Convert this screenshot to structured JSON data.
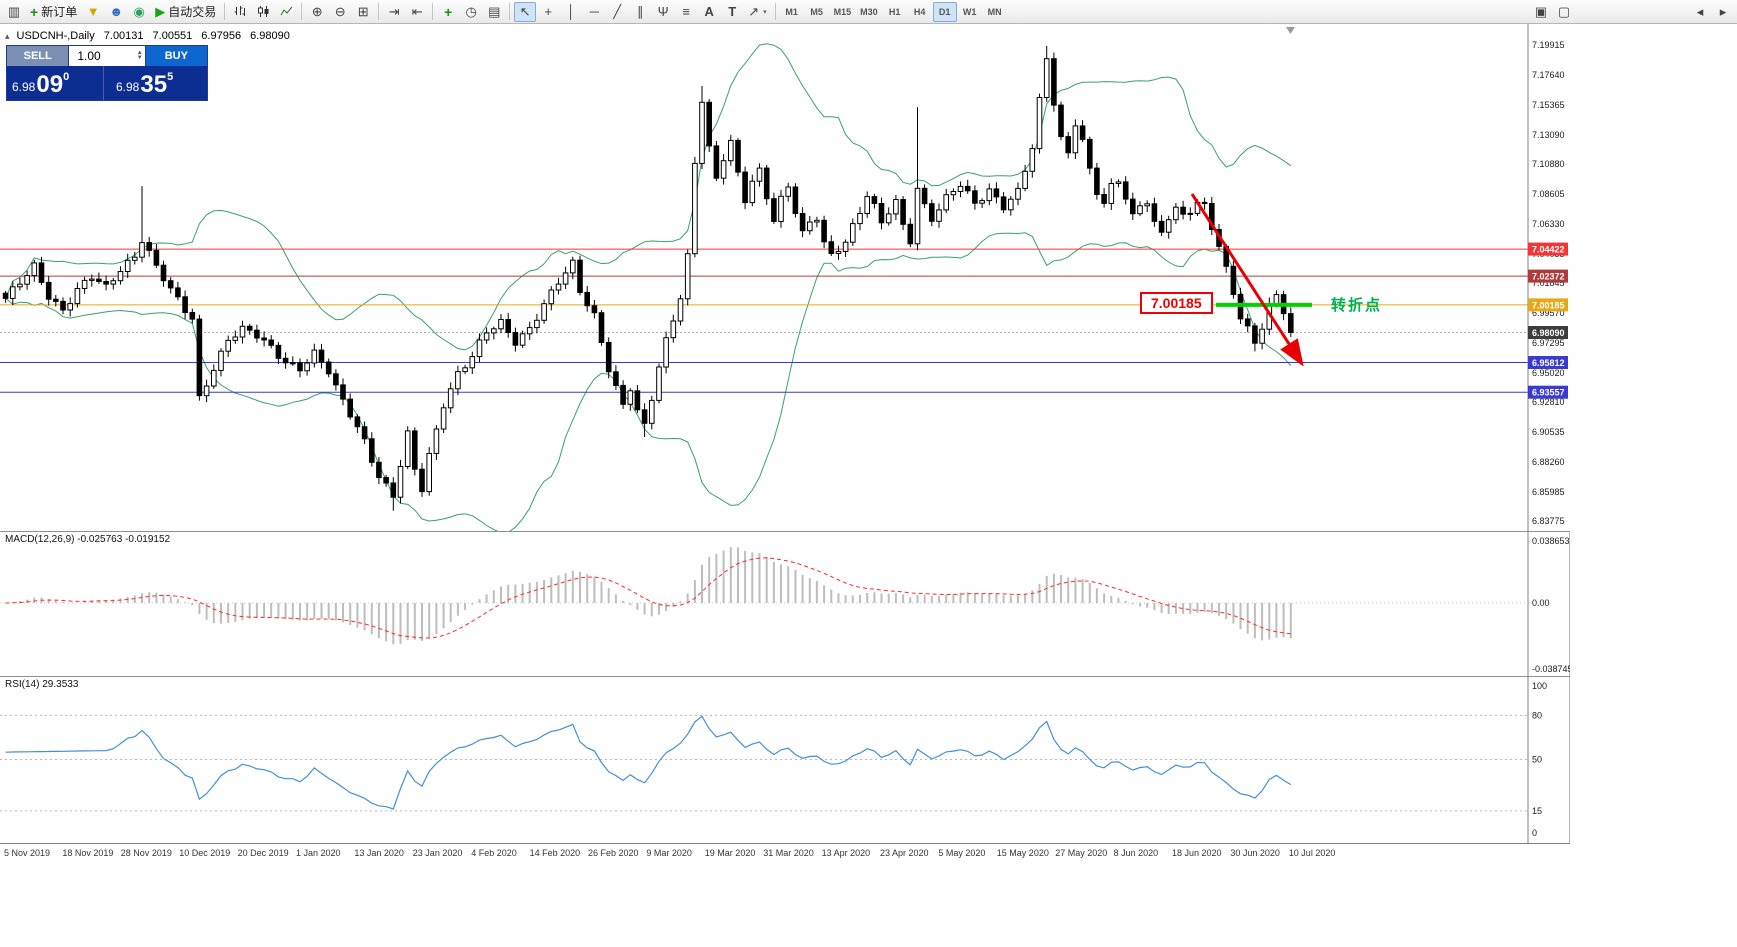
{
  "toolbar": {
    "new_order_label": "新订单",
    "auto_trading_label": "自动交易",
    "timeframes": [
      "M1",
      "M5",
      "M15",
      "M30",
      "H1",
      "H4",
      "D1",
      "W1",
      "MN"
    ],
    "active_timeframe": "D1"
  },
  "chart": {
    "symbol_title": "USDCNH-,Daily",
    "ohlc": {
      "open": "7.00131",
      "high": "7.00551",
      "low": "6.97956",
      "close": "6.98090"
    },
    "one_click": {
      "sell_label": "SELL",
      "buy_label": "BUY",
      "volume": "1.00",
      "sell_price_prefix": "6.98",
      "sell_price_big": "09",
      "sell_price_sup": "0",
      "buy_price_prefix": "6.98",
      "buy_price_big": "35",
      "buy_price_sup": "5"
    },
    "price_axis_ticks": [
      "7.19915",
      "7.17640",
      "7.15365",
      "7.13090",
      "7.10880",
      "7.08605",
      "7.06330",
      "7.04055",
      "7.01845",
      "6.99570",
      "6.97295",
      "6.95020",
      "6.92810",
      "6.90535",
      "6.88260",
      "6.85985",
      "6.83775"
    ],
    "price_range": {
      "max": 7.19915,
      "min": 6.83775
    },
    "levels": [
      {
        "price": 7.04422,
        "label": "7.04422",
        "color": "#f43537"
      },
      {
        "price": 7.02372,
        "label": "7.02372",
        "color": "#b03a3a"
      },
      {
        "price": 7.00185,
        "label": "7.00185",
        "color": "#e6a817"
      },
      {
        "price": 6.95812,
        "label": "6.95812",
        "color": "#3a3ad0"
      },
      {
        "price": 6.93557,
        "label": "6.93557",
        "color": "#3a3ad0"
      }
    ],
    "bid": {
      "price": 6.9809,
      "label": "6.98090",
      "color": "#3d3d3d"
    },
    "annotation": {
      "price_label": "7.00185",
      "turn_label": "转折点",
      "arrow_color": "#e80000",
      "turn_color": "#00b050",
      "segment_color": "#00d200"
    }
  },
  "macd": {
    "label": "MACD(12,26,9) -0.025763 -0.019152",
    "axis_top": "0.038653",
    "axis_mid": "0.00",
    "axis_bottom": "-0.038745"
  },
  "rsi": {
    "label": "RSI(14) 29.3533",
    "axis": [
      "100",
      "80",
      "50",
      "15",
      "0"
    ],
    "levels": [
      80,
      50,
      15
    ]
  },
  "dates": [
    "5 Nov 2019",
    "18 Nov 2019",
    "28 Nov 2019",
    "10 Dec 2019",
    "20 Dec 2019",
    "1 Jan 2020",
    "13 Jan 2020",
    "23 Jan 2020",
    "4 Feb 2020",
    "14 Feb 2020",
    "26 Feb 2020",
    "9 Mar 2020",
    "19 Mar 2020",
    "31 Mar 2020",
    "13 Apr 2020",
    "23 Apr 2020",
    "5 May 2020",
    "15 May 2020",
    "27 May 2020",
    "8 Jun 2020",
    "18 Jun 2020",
    "30 Jun 2020",
    "10 Jul 2020"
  ],
  "chart_data": {
    "type": "candlestick",
    "symbol": "USDCNH",
    "timeframe": "Daily",
    "n": 180,
    "last_close": 6.9809,
    "close_keypoints": [
      [
        0,
        7.005
      ],
      [
        2,
        7.018
      ],
      [
        4,
        7.032
      ],
      [
        6,
        7.01
      ],
      [
        8,
        6.998
      ],
      [
        10,
        7.012
      ],
      [
        12,
        7.022
      ],
      [
        14,
        7.015
      ],
      [
        16,
        7.03
      ],
      [
        18,
        7.04
      ],
      [
        19,
        7.052
      ],
      [
        21,
        7.03
      ],
      [
        23,
        7.012
      ],
      [
        25,
        6.998
      ],
      [
        26,
        6.992
      ],
      [
        27,
        6.932
      ],
      [
        29,
        6.955
      ],
      [
        31,
        6.975
      ],
      [
        33,
        6.982
      ],
      [
        35,
        6.978
      ],
      [
        37,
        6.97
      ],
      [
        39,
        6.96
      ],
      [
        41,
        6.954
      ],
      [
        43,
        6.964
      ],
      [
        45,
        6.95
      ],
      [
        46,
        6.938
      ],
      [
        48,
        6.92
      ],
      [
        50,
        6.9
      ],
      [
        52,
        6.872
      ],
      [
        54,
        6.856
      ],
      [
        56,
        6.902
      ],
      [
        57,
        6.876
      ],
      [
        58,
        6.862
      ],
      [
        59,
        6.888
      ],
      [
        61,
        6.928
      ],
      [
        63,
        6.95
      ],
      [
        65,
        6.962
      ],
      [
        67,
        6.98
      ],
      [
        69,
        6.988
      ],
      [
        71,
        6.975
      ],
      [
        73,
        6.985
      ],
      [
        75,
        7.002
      ],
      [
        77,
        7.018
      ],
      [
        79,
        7.032
      ],
      [
        80,
        7.012
      ],
      [
        82,
        6.995
      ],
      [
        84,
        6.955
      ],
      [
        86,
        6.925
      ],
      [
        87,
        6.938
      ],
      [
        88,
        6.92
      ],
      [
        89,
        6.908
      ],
      [
        90,
        6.93
      ],
      [
        91,
        6.955
      ],
      [
        92,
        6.975
      ],
      [
        93,
        6.992
      ],
      [
        94,
        7.01
      ],
      [
        95,
        7.04
      ],
      [
        96,
        7.11
      ],
      [
        97,
        7.158
      ],
      [
        98,
        7.12
      ],
      [
        99,
        7.095
      ],
      [
        100,
        7.112
      ],
      [
        101,
        7.125
      ],
      [
        102,
        7.1
      ],
      [
        103,
        7.082
      ],
      [
        104,
        7.098
      ],
      [
        105,
        7.105
      ],
      [
        106,
        7.085
      ],
      [
        107,
        7.068
      ],
      [
        108,
        7.082
      ],
      [
        109,
        7.09
      ],
      [
        110,
        7.072
      ],
      [
        111,
        7.055
      ],
      [
        112,
        7.062
      ],
      [
        113,
        7.068
      ],
      [
        114,
        7.05
      ],
      [
        115,
        7.04
      ],
      [
        117,
        7.052
      ],
      [
        119,
        7.072
      ],
      [
        120,
        7.085
      ],
      [
        121,
        7.075
      ],
      [
        122,
        7.062
      ],
      [
        123,
        7.072
      ],
      [
        124,
        7.08
      ],
      [
        125,
        7.062
      ],
      [
        126,
        7.052
      ],
      [
        127,
        7.092
      ],
      [
        128,
        7.078
      ],
      [
        129,
        7.068
      ],
      [
        131,
        7.082
      ],
      [
        133,
        7.092
      ],
      [
        135,
        7.078
      ],
      [
        137,
        7.09
      ],
      [
        139,
        7.078
      ],
      [
        141,
        7.088
      ],
      [
        143,
        7.12
      ],
      [
        144,
        7.155
      ],
      [
        145,
        7.188
      ],
      [
        146,
        7.155
      ],
      [
        147,
        7.128
      ],
      [
        148,
        7.118
      ],
      [
        149,
        7.142
      ],
      [
        150,
        7.128
      ],
      [
        151,
        7.105
      ],
      [
        152,
        7.088
      ],
      [
        153,
        7.078
      ],
      [
        154,
        7.09
      ],
      [
        155,
        7.095
      ],
      [
        156,
        7.082
      ],
      [
        157,
        7.068
      ],
      [
        158,
        7.078
      ],
      [
        159,
        7.082
      ],
      [
        160,
        7.065
      ],
      [
        161,
        7.058
      ],
      [
        162,
        7.07
      ],
      [
        163,
        7.075
      ],
      [
        164,
        7.068
      ],
      [
        165,
        7.072
      ],
      [
        166,
        7.078
      ],
      [
        167,
        7.075
      ],
      [
        168,
        7.06
      ],
      [
        169,
        7.048
      ],
      [
        170,
        7.03
      ],
      [
        171,
        7.012
      ],
      [
        172,
        6.995
      ],
      [
        173,
        6.985
      ],
      [
        174,
        6.972
      ],
      [
        175,
        6.985
      ],
      [
        176,
        7.0
      ],
      [
        177,
        7.006
      ],
      [
        178,
        6.996
      ],
      [
        179,
        6.981
      ]
    ],
    "high_spikes": [
      [
        19,
        7.092
      ],
      [
        97,
        7.168
      ],
      [
        127,
        7.152
      ],
      [
        145,
        7.1985
      ]
    ],
    "low_spikes": [
      [
        54,
        6.8455
      ],
      [
        89,
        6.9015
      ],
      [
        174,
        6.9665
      ]
    ],
    "indicators": {
      "bollinger_period": 20,
      "bollinger_dev": 2,
      "macd": [
        12,
        26,
        9
      ],
      "rsi_period": 14
    }
  },
  "colors": {
    "band": "#3aa06a",
    "bull": "#ffffff",
    "bear": "#000000",
    "candle_outline": "#000000",
    "macd_hist": "#bdbdbd",
    "macd_signal": "#ff2a2a",
    "rsi_line": "#4090d8"
  }
}
